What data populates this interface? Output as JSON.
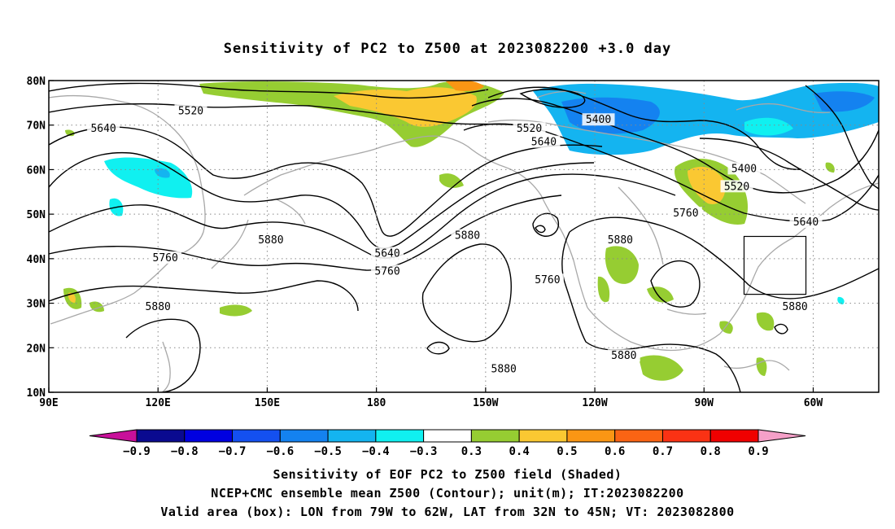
{
  "title": "Sensitivity of PC2 to Z500 at 2023082200 +3.0 day",
  "captions": [
    "Sensitivity of EOF PC2 to Z500 field (Shaded)",
    "NCEP+CMC ensemble mean Z500 (Contour); unit(m); IT:2023082200",
    "Valid area (box): LON from 79W to 62W, LAT from 32N to 45N; VT: 2023082800"
  ],
  "map": {
    "lon_labels": [
      "90E",
      "120E",
      "150E",
      "180",
      "150W",
      "120W",
      "90W",
      "60W"
    ],
    "lat_labels": [
      "80N",
      "70N",
      "60N",
      "50N",
      "40N",
      "30N",
      "20N",
      "10N"
    ],
    "lon_ticks": [
      90,
      120,
      150,
      180,
      210,
      240,
      270,
      300
    ],
    "lat_ticks": [
      80,
      70,
      60,
      50,
      40,
      30,
      20,
      10
    ],
    "lon_range": [
      90,
      318
    ],
    "lat_range": [
      10,
      80
    ],
    "valid_box": {
      "lon": [
        281,
        298
      ],
      "lat": [
        32,
        45
      ]
    },
    "contour_labels": [
      {
        "text": "5520",
        "lon": 129,
        "lat": 73
      },
      {
        "text": "5640",
        "lon": 105,
        "lat": 69
      },
      {
        "text": "5520",
        "lon": 222,
        "lat": 69
      },
      {
        "text": "5400",
        "lon": 241,
        "lat": 71
      },
      {
        "text": "5640",
        "lon": 226,
        "lat": 66
      },
      {
        "text": "5400",
        "lon": 281,
        "lat": 60
      },
      {
        "text": "5520",
        "lon": 279,
        "lat": 56
      },
      {
        "text": "5760",
        "lon": 265,
        "lat": 50
      },
      {
        "text": "5640",
        "lon": 298,
        "lat": 48
      },
      {
        "text": "5880",
        "lon": 151,
        "lat": 44
      },
      {
        "text": "5760",
        "lon": 122,
        "lat": 40
      },
      {
        "text": "5640",
        "lon": 183,
        "lat": 41
      },
      {
        "text": "5760",
        "lon": 183,
        "lat": 37
      },
      {
        "text": "5880",
        "lon": 205,
        "lat": 45
      },
      {
        "text": "5760",
        "lon": 227,
        "lat": 35
      },
      {
        "text": "5880",
        "lon": 247,
        "lat": 44
      },
      {
        "text": "5880",
        "lon": 120,
        "lat": 29
      },
      {
        "text": "5880",
        "lon": 295,
        "lat": 29
      },
      {
        "text": "5880",
        "lon": 248,
        "lat": 18
      },
      {
        "text": "5880",
        "lon": 215,
        "lat": 15
      }
    ]
  },
  "colorbar": {
    "labels": [
      "-0.9",
      "-0.8",
      "-0.7",
      "-0.6",
      "-0.5",
      "-0.4",
      "-0.3",
      "0.3",
      "0.4",
      "0.5",
      "0.6",
      "0.7",
      "0.8",
      "0.9"
    ],
    "low_extend_color": "#c8109a",
    "high_extend_color": "#f5a0c8",
    "colors": [
      "#0a0a90",
      "#0000e0",
      "#1450f0",
      "#1482f0",
      "#14b4f0",
      "#10f0f0",
      "#ffffff",
      "#96cd32",
      "#fac832",
      "#fa9614",
      "#fa6414",
      "#fa3214",
      "#f00000"
    ]
  },
  "colors": {
    "contour": "#000000",
    "coastline": "#a8a8a8",
    "grid": "#888888",
    "valid_box": "#000000"
  }
}
